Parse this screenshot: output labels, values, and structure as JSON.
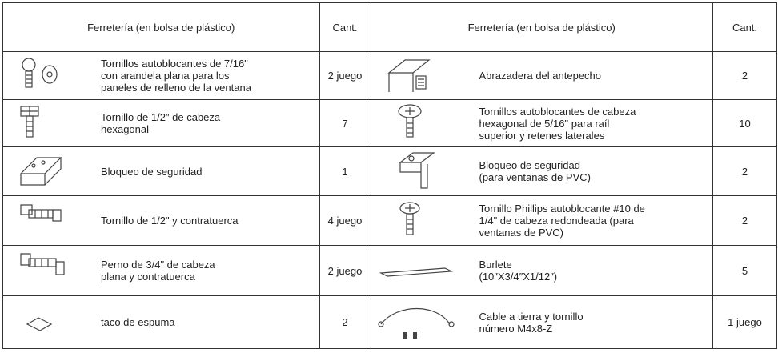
{
  "header": {
    "left_title": "Ferretería (en bolsa de plástico)",
    "left_qty": "Cant.",
    "right_title": "Ferretería (en bolsa de plástico)",
    "right_qty": "Cant."
  },
  "rows": [
    {
      "left": {
        "lines": [
          "Tornillos autoblocantes de 7/16\"",
          "con arandela plana para los",
          "paneles de relleno de la ventana"
        ],
        "qty": "2 juego"
      },
      "right": {
        "lines": [
          "Abrazadera del antepecho"
        ],
        "qty": "2"
      }
    },
    {
      "left": {
        "lines": [
          "Tornillo de 1/2″ de cabeza",
          "hexagonal"
        ],
        "qty": "7"
      },
      "right": {
        "lines": [
          "Tornillos autoblocantes de cabeza",
          "hexagonal de 5/16\" para raíl",
          "superior y retenes laterales"
        ],
        "qty": "10"
      }
    },
    {
      "left": {
        "lines": [
          "Bloqueo de seguridad"
        ],
        "qty": "1"
      },
      "right": {
        "lines": [
          "Bloqueo de seguridad",
          "(para ventanas de PVC)"
        ],
        "qty": "2"
      }
    },
    {
      "left": {
        "lines": [
          "Tornillo de 1/2\" y contratuerca"
        ],
        "qty": "4 juego"
      },
      "right": {
        "lines": [
          "Tornillo Phillips autoblocante #10 de",
          "1/4\" de cabeza redondeada (para",
          "ventanas de PVC)"
        ],
        "qty": "2"
      }
    },
    {
      "left": {
        "lines": [
          "Perno de 3/4\" de cabeza",
          "plana y contratuerca"
        ],
        "qty": "2 juego"
      },
      "right": {
        "lines": [
          "Burlete",
          "(10″X3/4″X1/12″)"
        ],
        "qty": "5"
      }
    },
    {
      "left": {
        "lines": [
          "taco de espuma"
        ],
        "qty": "2"
      },
      "right": {
        "lines": [
          "Cable a tierra y tornillo",
          "número M4x8-Z"
        ],
        "qty": "1 juego"
      }
    }
  ]
}
